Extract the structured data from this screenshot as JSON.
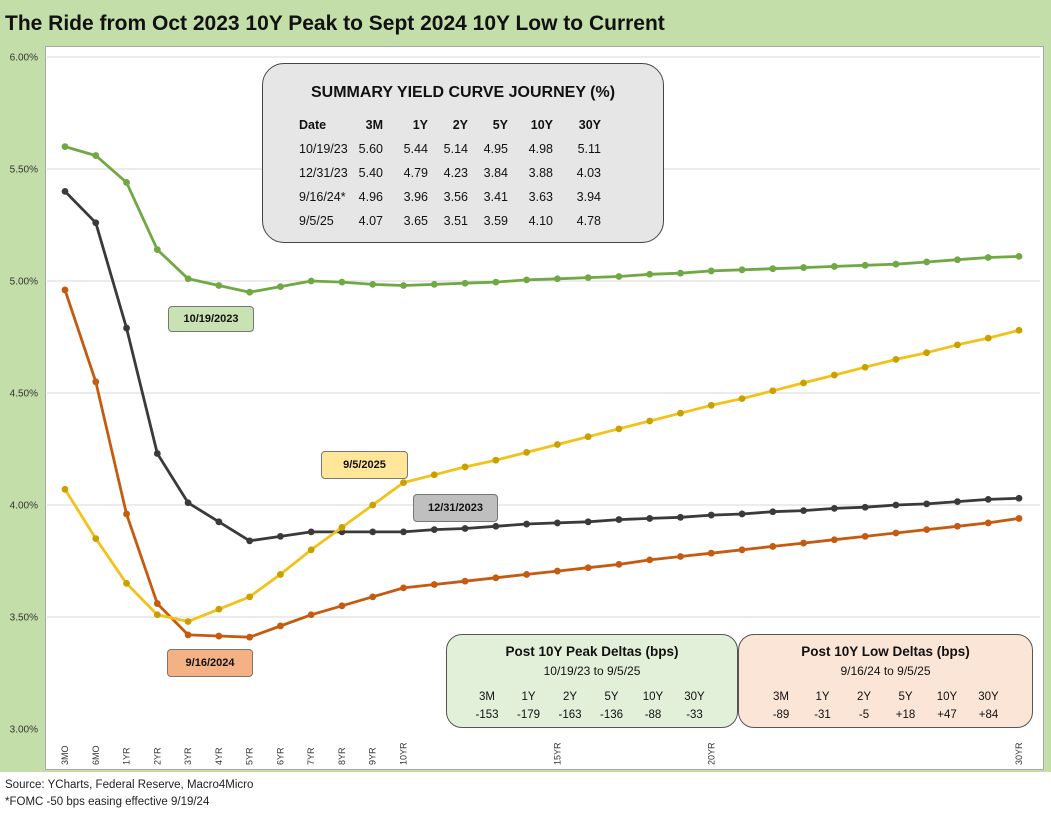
{
  "title": "The Ride from Oct 2023 10Y Peak to Sept 2024 10Y Low to Current",
  "source": "Source: YCharts, Federal Reserve, Macro4Micro",
  "footnote": "*FOMC -50 bps easing effective  9/19/24",
  "colors": {
    "oct2023": "#70a844",
    "dec2023": "#3a3a3a",
    "sep2024": "#c55a11",
    "sep2025": "#f2c21a",
    "grid": "#d9d9d9",
    "frame": "#c3dea8"
  },
  "chart_data": {
    "type": "line",
    "ylim": [
      3.0,
      6.0
    ],
    "yticks": [
      "3.00%",
      "3.50%",
      "4.00%",
      "4.50%",
      "5.00%",
      "5.50%",
      "6.00%"
    ],
    "x_tick_labels": [
      "3MO",
      "6MO",
      "1YR",
      "2YR",
      "3YR",
      "4YR",
      "5YR",
      "6YR",
      "7YR",
      "8YR",
      "9YR",
      "10YR",
      "15YR",
      "20YR",
      "30YR"
    ],
    "x": [
      0.25,
      0.5,
      1,
      2,
      3,
      4,
      5,
      6,
      7,
      8,
      9,
      10,
      11,
      12,
      13,
      14,
      15,
      16,
      17,
      18,
      19,
      20,
      21,
      22,
      23,
      24,
      25,
      26,
      27,
      28,
      29,
      30
    ],
    "series": [
      {
        "key": "oct2023",
        "values": [
          5.6,
          5.56,
          5.44,
          5.14,
          5.01,
          4.98,
          4.95,
          4.975,
          5.0,
          4.995,
          4.985,
          4.98,
          4.985,
          4.99,
          4.995,
          5.005,
          5.01,
          5.015,
          5.02,
          5.03,
          5.035,
          5.045,
          5.05,
          5.055,
          5.06,
          5.065,
          5.07,
          5.075,
          5.085,
          5.095,
          5.105,
          5.11
        ]
      },
      {
        "key": "dec2023",
        "values": [
          5.4,
          5.26,
          4.79,
          4.23,
          4.01,
          3.925,
          3.84,
          3.86,
          3.88,
          3.88,
          3.88,
          3.88,
          3.89,
          3.895,
          3.905,
          3.915,
          3.92,
          3.925,
          3.935,
          3.94,
          3.945,
          3.955,
          3.96,
          3.97,
          3.975,
          3.985,
          3.99,
          4.0,
          4.005,
          4.015,
          4.025,
          4.03
        ]
      },
      {
        "key": "sep2024",
        "values": [
          4.96,
          4.55,
          3.96,
          3.56,
          3.42,
          3.415,
          3.41,
          3.46,
          3.51,
          3.55,
          3.59,
          3.63,
          3.645,
          3.66,
          3.675,
          3.69,
          3.705,
          3.72,
          3.735,
          3.755,
          3.77,
          3.785,
          3.8,
          3.815,
          3.83,
          3.845,
          3.86,
          3.875,
          3.89,
          3.905,
          3.92,
          3.94
        ]
      },
      {
        "key": "sep2025",
        "values": [
          4.07,
          3.85,
          3.65,
          3.51,
          3.48,
          3.535,
          3.59,
          3.69,
          3.8,
          3.9,
          4.0,
          4.1,
          4.135,
          4.17,
          4.2,
          4.235,
          4.27,
          4.305,
          4.34,
          4.375,
          4.41,
          4.445,
          4.475,
          4.51,
          4.545,
          4.58,
          4.615,
          4.65,
          4.68,
          4.715,
          4.745,
          4.78
        ]
      }
    ],
    "callouts": [
      {
        "key": "oct2023",
        "label": "10/19/2023",
        "bg": "#c9e2b3"
      },
      {
        "key": "dec2023",
        "label": "12/31/2023",
        "bg": "#bfbfbf"
      },
      {
        "key": "sep2024",
        "label": "9/16/2024",
        "bg": "#f4b183"
      },
      {
        "key": "sep2025",
        "label": "9/5/2025",
        "bg": "#ffe699"
      }
    ]
  },
  "summary": {
    "title": "SUMMARY YIELD CURVE JOURNEY (%)",
    "headers": [
      "Date",
      "3M",
      "1Y",
      "2Y",
      "5Y",
      "10Y",
      "30Y"
    ],
    "rows": [
      [
        "10/19/23",
        "5.60",
        "5.44",
        "5.14",
        "4.95",
        "4.98",
        "5.11"
      ],
      [
        "12/31/23",
        "5.40",
        "4.79",
        "4.23",
        "3.84",
        "3.88",
        "4.03"
      ],
      [
        "9/16/24*",
        "4.96",
        "3.96",
        "3.56",
        "3.41",
        "3.63",
        "3.94"
      ],
      [
        "9/5/25",
        "4.07",
        "3.65",
        "3.51",
        "3.59",
        "4.10",
        "4.78"
      ]
    ]
  },
  "peak_deltas": {
    "title": "Post 10Y Peak Deltas (bps)",
    "subtitle": "10/19/23  to 9/5/25",
    "headers": [
      "3M",
      "1Y",
      "2Y",
      "5Y",
      "10Y",
      "30Y"
    ],
    "values": [
      "-153",
      "-179",
      "-163",
      "-136",
      "-88",
      "-33"
    ],
    "bg": "#e2efd9"
  },
  "low_deltas": {
    "title": "Post 10Y Low Deltas (bps)",
    "subtitle": "9/16/24 to 9/5/25",
    "headers": [
      "3M",
      "1Y",
      "2Y",
      "5Y",
      "10Y",
      "30Y"
    ],
    "values": [
      "-89",
      "-31",
      "-5",
      "+18",
      "+47",
      "+84"
    ],
    "bg": "#fbe5d6"
  }
}
